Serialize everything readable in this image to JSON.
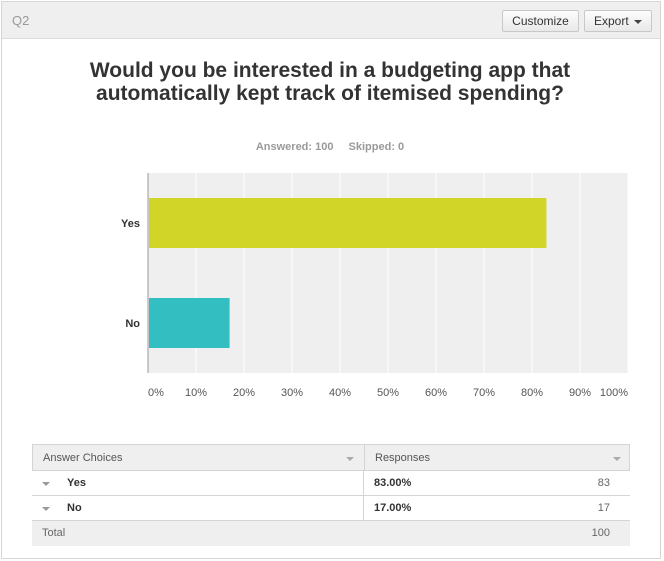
{
  "header": {
    "question_label": "Q2",
    "customize_label": "Customize",
    "export_label": "Export"
  },
  "question": {
    "title": "Would you be interested in a budgeting app that automatically kept track of itemised spending?",
    "answered": "Answered: 100",
    "skipped": "Skipped: 0"
  },
  "chart_data": {
    "type": "bar",
    "orientation": "horizontal",
    "categories": [
      "Yes",
      "No"
    ],
    "values": [
      83,
      17
    ],
    "colors": [
      "#d0d528",
      "#33bfc1"
    ],
    "x_ticks": [
      "0%",
      "10%",
      "20%",
      "30%",
      "40%",
      "50%",
      "60%",
      "70%",
      "80%",
      "90%",
      "100%"
    ],
    "xlim": [
      0,
      100
    ],
    "grid": true,
    "plot_background": "#efefef"
  },
  "table": {
    "headers": [
      "Answer Choices",
      "Responses"
    ],
    "rows": [
      {
        "choice": "Yes",
        "percent": "83.00%",
        "count": "83"
      },
      {
        "choice": "No",
        "percent": "17.00%",
        "count": "17"
      }
    ],
    "total_label": "Total",
    "total_value": "100"
  }
}
